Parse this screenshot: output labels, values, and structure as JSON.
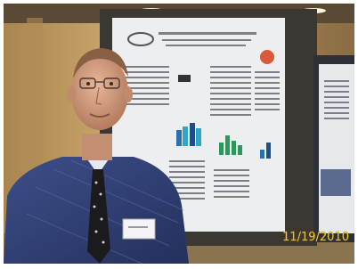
{
  "timestamp": "11/19/2010"
}
